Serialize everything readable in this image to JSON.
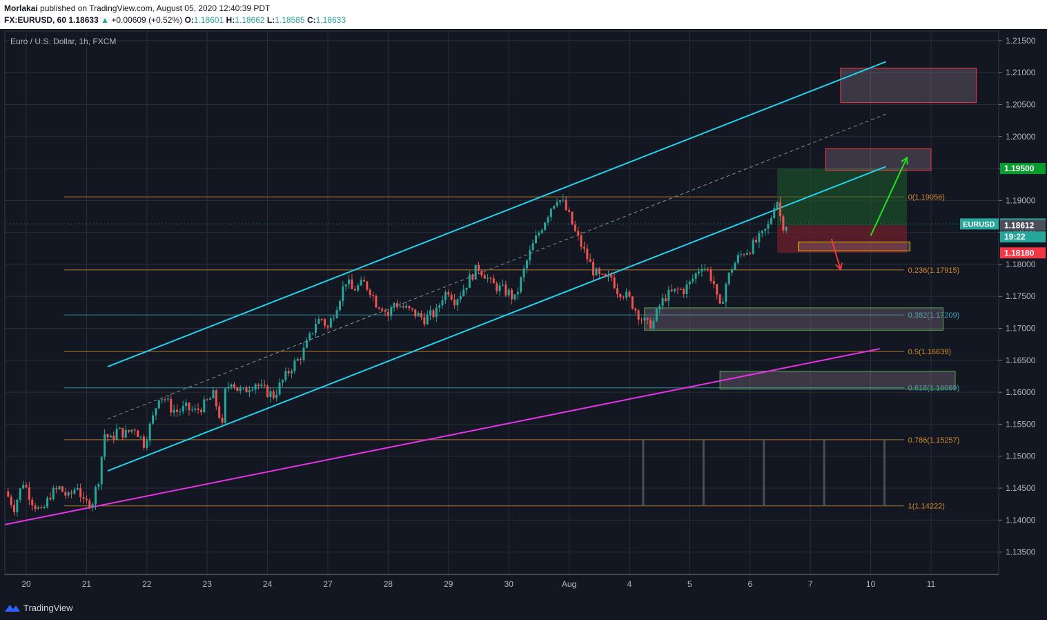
{
  "header": {
    "author": "Morlakai",
    "published_text": "published on TradingView.com, August 05, 2020 12:40:39 PDT",
    "symbol": "FX:EURUSD, 60",
    "last": "1.18633",
    "change": "+0.00609 (+0.52%)",
    "o_label": "O:",
    "o_value": "1.18601",
    "h_label": "H:",
    "h_value": "1.18662",
    "l_label": "L:",
    "l_value": "1.18585",
    "c_label": "C:",
    "c_value": "1.18633"
  },
  "chart_title": "Euro / U.S. Dollar, 1h, FXCM",
  "footer": {
    "brand": "TradingView"
  },
  "colors": {
    "background": "#131722",
    "grid": "#2a2e39",
    "up": "#26a69a",
    "down": "#ef5350",
    "channel": "#22d3ee",
    "trendline": "#e633e6",
    "fib": "#d48a2c",
    "fib_teal": "#3ba4b4",
    "target_green": "#1e9e3a",
    "stop_red": "#f23645",
    "price_label": "#26a69a"
  },
  "chart_data": {
    "type": "candlestick",
    "title": "Euro / U.S. Dollar, 1h, FXCM",
    "ylim": [
      1.1315,
      1.2165
    ],
    "y_ticks": [
      "1.21500",
      "1.21000",
      "1.20500",
      "1.20000",
      "1.19500",
      "1.19000",
      "1.18500",
      "1.18000",
      "1.17500",
      "1.17000",
      "1.16500",
      "1.16000",
      "1.15500",
      "1.15000",
      "1.14500",
      "1.14000",
      "1.13500"
    ],
    "x_ticks": [
      "20",
      "21",
      "22",
      "23",
      "24",
      "27",
      "28",
      "29",
      "30",
      "Aug",
      "4",
      "5",
      "6",
      "7",
      "10",
      "11"
    ],
    "x_days": [
      0,
      1,
      2,
      3,
      4,
      5,
      6,
      7,
      8,
      9,
      10,
      11,
      12,
      13,
      14,
      15
    ],
    "price_path": [
      [
        -0.35,
        1.1445
      ],
      [
        -0.2,
        1.142
      ],
      [
        -0.05,
        1.146
      ],
      [
        0.1,
        1.143
      ],
      [
        0.25,
        1.141
      ],
      [
        0.4,
        1.144
      ],
      [
        0.55,
        1.145
      ],
      [
        0.7,
        1.1435
      ],
      [
        0.85,
        1.1455
      ],
      [
        0.95,
        1.1425
      ],
      [
        1.1,
        1.143
      ],
      [
        1.2,
        1.1465
      ],
      [
        1.3,
        1.1535
      ],
      [
        1.4,
        1.1525
      ],
      [
        1.5,
        1.154
      ],
      [
        1.65,
        1.1535
      ],
      [
        1.8,
        1.1545
      ],
      [
        1.95,
        1.152
      ],
      [
        2.1,
        1.156
      ],
      [
        2.2,
        1.1595
      ],
      [
        2.3,
        1.159
      ],
      [
        2.4,
        1.1575
      ],
      [
        2.5,
        1.157
      ],
      [
        2.65,
        1.1575
      ],
      [
        2.8,
        1.157
      ],
      [
        2.95,
        1.158
      ],
      [
        3.1,
        1.1595
      ],
      [
        3.2,
        1.1565
      ],
      [
        3.25,
        1.1545
      ],
      [
        3.3,
        1.16
      ],
      [
        3.4,
        1.162
      ],
      [
        3.5,
        1.1605
      ],
      [
        3.6,
        1.16
      ],
      [
        3.7,
        1.161
      ],
      [
        3.8,
        1.1615
      ],
      [
        3.9,
        1.1605
      ],
      [
        4.0,
        1.16
      ],
      [
        4.1,
        1.1595
      ],
      [
        4.2,
        1.161
      ],
      [
        4.3,
        1.1625
      ],
      [
        4.4,
        1.164
      ],
      [
        4.5,
        1.165
      ],
      [
        4.6,
        1.1665
      ],
      [
        4.7,
        1.1685
      ],
      [
        4.8,
        1.171
      ],
      [
        4.9,
        1.1715
      ],
      [
        5.0,
        1.17
      ],
      [
        5.1,
        1.1725
      ],
      [
        5.2,
        1.175
      ],
      [
        5.3,
        1.1775
      ],
      [
        5.4,
        1.176
      ],
      [
        5.5,
        1.1765
      ],
      [
        5.6,
        1.177
      ],
      [
        5.7,
        1.176
      ],
      [
        5.8,
        1.174
      ],
      [
        5.9,
        1.1735
      ],
      [
        6.0,
        1.172
      ],
      [
        6.1,
        1.174
      ],
      [
        6.2,
        1.1735
      ],
      [
        6.3,
        1.173
      ],
      [
        6.4,
        1.1725
      ],
      [
        6.5,
        1.172
      ],
      [
        6.6,
        1.1715
      ],
      [
        6.7,
        1.172
      ],
      [
        6.8,
        1.1725
      ],
      [
        6.9,
        1.175
      ],
      [
        7.0,
        1.176
      ],
      [
        7.1,
        1.1745
      ],
      [
        7.2,
        1.1755
      ],
      [
        7.3,
        1.177
      ],
      [
        7.4,
        1.1785
      ],
      [
        7.5,
        1.1795
      ],
      [
        7.6,
        1.1785
      ],
      [
        7.7,
        1.177
      ],
      [
        7.8,
        1.1765
      ],
      [
        7.9,
        1.176
      ],
      [
        8.0,
        1.1755
      ],
      [
        8.1,
        1.1745
      ],
      [
        8.2,
        1.1775
      ],
      [
        8.3,
        1.1805
      ],
      [
        8.4,
        1.183
      ],
      [
        8.5,
        1.185
      ],
      [
        8.6,
        1.187
      ],
      [
        8.7,
        1.189
      ],
      [
        8.8,
        1.1905
      ],
      [
        8.9,
        1.1895
      ],
      [
        9.0,
        1.1875
      ],
      [
        9.1,
        1.185
      ],
      [
        9.2,
        1.183
      ],
      [
        9.3,
        1.181
      ],
      [
        9.4,
        1.179
      ],
      [
        9.5,
        1.178
      ],
      [
        9.6,
        1.1775
      ],
      [
        9.7,
        1.178
      ],
      [
        9.8,
        1.176
      ],
      [
        9.9,
        1.1755
      ],
      [
        10.0,
        1.1745
      ],
      [
        10.1,
        1.173
      ],
      [
        10.2,
        1.1715
      ],
      [
        10.3,
        1.1705
      ],
      [
        10.4,
        1.171
      ],
      [
        10.5,
        1.1735
      ],
      [
        10.6,
        1.175
      ],
      [
        10.7,
        1.1755
      ],
      [
        10.8,
        1.176
      ],
      [
        10.9,
        1.176
      ],
      [
        11.0,
        1.177
      ],
      [
        11.1,
        1.1785
      ],
      [
        11.2,
        1.18
      ],
      [
        11.3,
        1.179
      ],
      [
        11.4,
        1.177
      ],
      [
        11.45,
        1.1745
      ],
      [
        11.5,
        1.173
      ],
      [
        11.6,
        1.177
      ],
      [
        11.7,
        1.1795
      ],
      [
        11.8,
        1.181
      ],
      [
        11.9,
        1.182
      ],
      [
        12.0,
        1.1825
      ],
      [
        12.1,
        1.1835
      ],
      [
        12.2,
        1.1845
      ],
      [
        12.3,
        1.186
      ],
      [
        12.35,
        1.1875
      ],
      [
        12.4,
        1.1895
      ],
      [
        12.45,
        1.19
      ],
      [
        12.5,
        1.1875
      ],
      [
        12.55,
        1.1862
      ],
      [
        12.6,
        1.1863
      ]
    ],
    "fib_levels": [
      {
        "label": "0(1.19056)",
        "value": 1.19056,
        "color": "fib"
      },
      {
        "label": "0.236(1.17915)",
        "value": 1.17915,
        "color": "fib"
      },
      {
        "label": "0.382(1.17209)",
        "value": 1.17209,
        "color": "fib_teal"
      },
      {
        "label": "0.5(1.16639)",
        "value": 1.16639,
        "color": "fib"
      },
      {
        "label": "0.618(1.16069)",
        "value": 1.16069,
        "color": "fib_teal"
      },
      {
        "label": "0.786(1.15257)",
        "value": 1.15257,
        "color": "fib"
      },
      {
        "label": "1(1.14222)",
        "value": 1.14222,
        "color": "fib"
      }
    ],
    "channel_upper": [
      [
        1.35,
        1.164
      ],
      [
        14.25,
        1.2117
      ]
    ],
    "channel_lower": [
      [
        1.35,
        1.1477
      ],
      [
        14.25,
        1.1953
      ]
    ],
    "channel_mid": [
      [
        1.35,
        1.1558
      ],
      [
        14.25,
        1.2035
      ]
    ],
    "trendline": [
      [
        -0.35,
        1.1393
      ],
      [
        14.15,
        1.1668
      ]
    ],
    "zones": [
      {
        "name": "red-zone-top",
        "x": [
          13.5,
          15.75
        ],
        "y": [
          1.2053,
          1.2107
        ],
        "stroke": "#f23645"
      },
      {
        "name": "red-zone-mid",
        "x": [
          13.25,
          15.0
        ],
        "y": [
          1.1947,
          1.1981
        ],
        "stroke": "#f23645"
      },
      {
        "name": "yellow-zone",
        "x": [
          12.8,
          14.65
        ],
        "y": [
          1.1821,
          1.1835
        ],
        "stroke": "#f5c518"
      },
      {
        "name": "green-zone-upper",
        "x": [
          10.25,
          15.2
        ],
        "y": [
          1.1697,
          1.1732
        ],
        "stroke": "#4caf50"
      },
      {
        "name": "green-zone-lower",
        "x": [
          11.5,
          15.4
        ],
        "y": [
          1.1605,
          1.1633
        ],
        "stroke": "#4caf50"
      }
    ],
    "position": {
      "entry_x": [
        12.45,
        14.6
      ],
      "target": 1.195,
      "entry": 1.18612,
      "stop": 1.1818
    },
    "arrows": [
      {
        "name": "up-arrow",
        "from": [
          14.0,
          1.1845
        ],
        "to": [
          14.6,
          1.1967
        ],
        "color": "#22e022"
      },
      {
        "name": "down-arrow",
        "from": [
          13.35,
          1.184
        ],
        "to": [
          13.5,
          1.1792
        ],
        "color": "#ef3b3b"
      }
    ],
    "price_labels": [
      {
        "name": "target-price-label",
        "text": "1.19500",
        "value": 1.195,
        "color": "#089c2e"
      },
      {
        "name": "last-price-label",
        "text": "1.18633",
        "value": 1.18633,
        "color": "#26a69a",
        "tag": "EURUSD"
      },
      {
        "name": "countdown-label",
        "text": "19:22",
        "value": 1.1843,
        "color": "#26a69a"
      },
      {
        "name": "entry-price-label",
        "text": "1.18612",
        "value": 1.18612,
        "color": "#4a4e59"
      },
      {
        "name": "stop-price-label",
        "text": "1.18180",
        "value": 1.1818,
        "color": "#f23645"
      }
    ]
  }
}
